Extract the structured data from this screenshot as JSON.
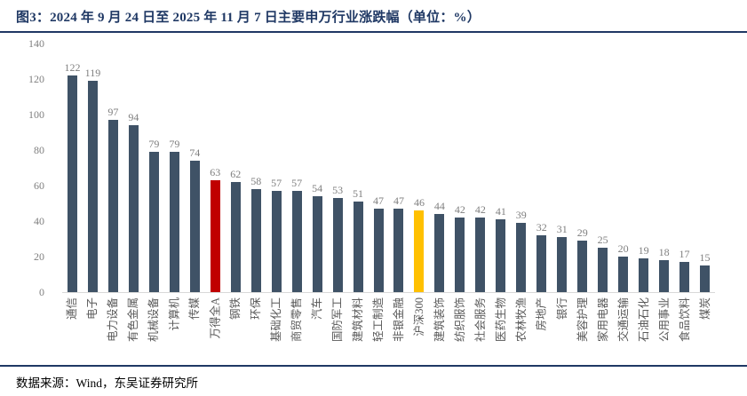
{
  "header": {
    "title": "图3：2024 年 9 月 24 日至 2025 年 11 月 7 日主要申万行业涨跌幅（单位：%）"
  },
  "footer": {
    "source": "数据来源：Wind，东吴证券研究所"
  },
  "colors": {
    "bar_default": "#3F5266",
    "bar_wande_quan_a": "#C00000",
    "bar_hs300": "#FFC000",
    "title_navy": "#1F3864",
    "value_label_gray": "#7F7F7F",
    "category_label_gray": "#595959",
    "axis_line_gray": "#D9D9D9"
  },
  "chart_data": {
    "type": "bar",
    "title": "2024 年 9 月 24 日至 2025 年 11 月 7 日主要申万行业涨跌幅（单位：%）",
    "xlabel": "",
    "ylabel": "",
    "ylim": [
      0,
      140
    ],
    "yticks": [
      0,
      20,
      40,
      60,
      80,
      100,
      120,
      140
    ],
    "grid": false,
    "legend": false,
    "data_labels": true,
    "categories": [
      "通信",
      "电子",
      "电力设备",
      "有色金属",
      "机械设备",
      "计算机",
      "传媒",
      "万得全A",
      "钢铁",
      "环保",
      "基础化工",
      "商贸零售",
      "汽车",
      "国防军工",
      "建筑材料",
      "轻工制造",
      "非银金融",
      "沪深300",
      "建筑装饰",
      "纺织服饰",
      "社会服务",
      "医药生物",
      "农林牧渔",
      "房地产",
      "银行",
      "美容护理",
      "家用电器",
      "交通运输",
      "石油石化",
      "公用事业",
      "食品饮料",
      "煤炭"
    ],
    "values": [
      122,
      119,
      97,
      94,
      79,
      79,
      74,
      63,
      62,
      58,
      57,
      57,
      54,
      53,
      51,
      47,
      47,
      46,
      44,
      42,
      42,
      41,
      39,
      32,
      31,
      29,
      25,
      20,
      19,
      18,
      17,
      15
    ],
    "bar_color": "#3F5266",
    "highlight_colors": {
      "万得全A": "#C00000",
      "沪深300": "#FFC000"
    }
  }
}
